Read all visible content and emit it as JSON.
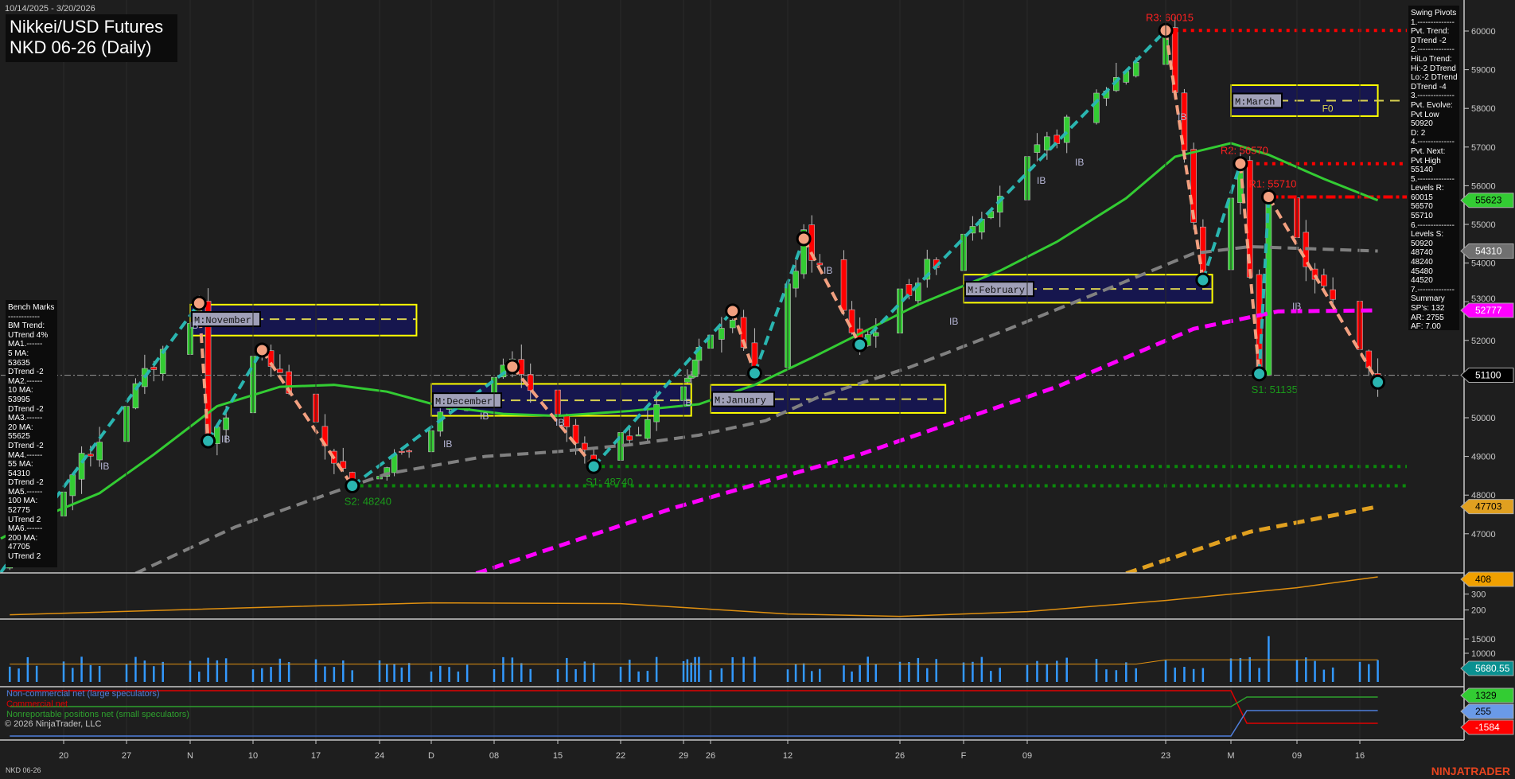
{
  "header": {
    "date_range": "10/14/2025 - 3/20/2026",
    "title_line1": "Nikkei/USD Futures",
    "title_line2": "NKD 06-26 (Daily)"
  },
  "swing_pivots_panel": [
    "Swing Pivots",
    "1.--------------",
    "Pvt. Trend:",
    "DTrend -2",
    "2.--------------",
    "HiLo Trend:",
    "Hi:-2 DTrend",
    "Lo:-2 DTrend",
    "DTrend -4",
    "3.--------------",
    "Pvt. Evolve:",
    "Pvt Low",
    "50920",
    "D: 2",
    "4.--------------",
    "Pvt. Next:",
    "Pvt High",
    "55140",
    "5.--------------",
    "Levels R:",
    "60015",
    "56570",
    "55710",
    "6.--------------",
    "Levels S:",
    "50920",
    "48740",
    "48240",
    "45480",
    "44520",
    "7.--------------",
    "Summary",
    "SP's: 132",
    "AR: 2755",
    "AF: 7.00"
  ],
  "bench_marks_panel": [
    "Bench Marks",
    "------------",
    "BM Trend:",
    "UTrend 4%",
    "MA1.------",
    "5 MA:",
    "53635",
    "DTrend -2",
    "MA2.------",
    "10 MA:",
    "53995",
    "DTrend -2",
    "MA3.------",
    "20 MA:",
    "55625",
    "DTrend -2",
    "MA4.------",
    "55 MA:",
    "54310",
    "DTrend -2",
    "MA5.------",
    "100 MA:",
    "52775",
    "UTrend 2",
    "MA6.------",
    "200 MA:",
    "47705",
    "UTrend 2"
  ],
  "footer": {
    "instrument": "NKD 06-26",
    "copyright": "© 2026 NinjaTrader, LLC",
    "brand": "NINJATRADER"
  },
  "cot_legend": [
    {
      "text": "Non-commercial net (large speculators)",
      "color": "#4f7fdc"
    },
    {
      "text": "Commercial net",
      "color": "#e00000"
    },
    {
      "text": "Nonreportable positions net (small speculators)",
      "color": "#2ea02e"
    }
  ],
  "colors": {
    "up": "#33cc33",
    "down": "#ff0000",
    "zig_up": "#2ab5b0",
    "zig_down": "#f2a080",
    "ma20": "#33cc33",
    "ma55": "#808080",
    "ma100": "#ff00ff",
    "ma200": "#e0a020",
    "box_fill": "#16164e",
    "box_border": "#ffff00"
  },
  "ib_label": "IB",
  "chart_data": {
    "type": "candlestick",
    "x_ticks": [
      {
        "label": "20",
        "date": "2025-10-20"
      },
      {
        "label": "27",
        "date": "2025-10-27"
      },
      {
        "label": "N",
        "date": "2025-11-03"
      },
      {
        "label": "10",
        "date": "2025-11-10"
      },
      {
        "label": "17",
        "date": "2025-11-17"
      },
      {
        "label": "24",
        "date": "2025-11-24"
      },
      {
        "label": "D",
        "date": "2025-12-01"
      },
      {
        "label": "08",
        "date": "2025-12-08"
      },
      {
        "label": "15",
        "date": "2025-12-15"
      },
      {
        "label": "22",
        "date": "2025-12-22"
      },
      {
        "label": "29",
        "date": "2025-12-29"
      },
      {
        "label": "26",
        "date": "2026-01-05"
      },
      {
        "label": "12",
        "date": "2026-01-12"
      },
      {
        "label": "26",
        "date": "2026-01-26"
      },
      {
        "label": "F",
        "date": "2026-02-02"
      },
      {
        "label": "09",
        "date": "2026-02-09"
      },
      {
        "label": "23",
        "date": "2026-02-23"
      },
      {
        "label": "M",
        "date": "2026-03-02"
      },
      {
        "label": "09",
        "date": "2026-03-09"
      },
      {
        "label": "16",
        "date": "2026-03-16"
      }
    ],
    "price_ticks": [
      60000,
      59000,
      58000,
      57000,
      56000,
      55000,
      54000,
      53000,
      52000,
      50000,
      49000,
      48000,
      47000
    ],
    "ylim": [
      46000,
      60800
    ],
    "swing_pivots": [
      {
        "date": "2025-10-13",
        "price": 46000
      },
      {
        "date": "2025-11-04",
        "price": 52960,
        "type": "high"
      },
      {
        "date": "2025-11-05",
        "price": 49400,
        "type": "low"
      },
      {
        "date": "2025-11-11",
        "price": 51750,
        "type": "high"
      },
      {
        "date": "2025-11-21",
        "price": 48240,
        "type": "low",
        "label": "S2: 48240"
      },
      {
        "date": "2025-12-10",
        "price": 51320,
        "type": "high"
      },
      {
        "date": "2025-12-19",
        "price": 48740,
        "type": "low",
        "label": "S1: 48740"
      },
      {
        "date": "2026-01-07",
        "price": 52760,
        "type": "high"
      },
      {
        "date": "2026-01-09",
        "price": 51150,
        "type": "low"
      },
      {
        "date": "2026-01-14",
        "price": 54630,
        "type": "high"
      },
      {
        "date": "2026-01-21",
        "price": 51890,
        "type": "low"
      },
      {
        "date": "2026-02-23",
        "price": 60015,
        "type": "high",
        "label": "R3: 60015"
      },
      {
        "date": "2026-02-27",
        "price": 53560,
        "type": "low"
      },
      {
        "date": "2026-03-03",
        "price": 56570,
        "type": "high",
        "label": "R2: 56570"
      },
      {
        "date": "2026-03-05",
        "price": 51135,
        "type": "low",
        "label": "S1: 51135"
      },
      {
        "date": "2026-03-06",
        "price": 55710,
        "type": "high",
        "label": "R1: 55710"
      },
      {
        "date": "2026-03-18",
        "price": 50920,
        "type": "low"
      }
    ],
    "levels": [
      {
        "price": 60015,
        "from": "2026-02-24",
        "color": "#ff0000",
        "style": "dotted"
      },
      {
        "price": 56570,
        "from": "2026-03-03",
        "color": "#ff0000",
        "style": "dotted"
      },
      {
        "price": 55710,
        "from": "2026-03-06",
        "color": "#ff0000",
        "style": "dashdot"
      },
      {
        "price": 48740,
        "from": "2025-12-19",
        "color": "#0a8a0a",
        "style": "dotted"
      },
      {
        "price": 48240,
        "from": "2025-11-21",
        "color": "#0a8a0a",
        "style": "dotted"
      },
      {
        "price": 51100,
        "from": "2025-10-13",
        "color": "#888888",
        "style": "dashdot"
      }
    ],
    "monthly_boxes": [
      {
        "label": "M:November",
        "from": "2025-11-03",
        "to": "2025-11-29",
        "high": 52925,
        "low": 52125,
        "mid": 52550
      },
      {
        "label": "M:December",
        "from": "2025-12-01",
        "to": "2025-12-31",
        "high": 50875,
        "low": 50050,
        "mid": 50450
      },
      {
        "label": "M:January",
        "from": "2026-01-05",
        "to": "2026-01-31",
        "high": 50850,
        "low": 50125,
        "mid": 50480
      },
      {
        "label": "M:February",
        "from": "2026-02-02",
        "to": "2026-02-28",
        "high": 53700,
        "low": 52975,
        "mid": 53330
      },
      {
        "label": "M:March",
        "from": "2026-03-02",
        "to": "2026-03-18",
        "high": 58600,
        "low": 57800,
        "mid": 58200,
        "tag": "F0"
      }
    ],
    "moving_averages": [
      {
        "name": "20 MA",
        "color": "#33cc33",
        "style": "solid",
        "points": [
          [
            "2025-10-13",
            46875
          ],
          [
            "2025-10-17",
            47375
          ],
          [
            "2025-10-24",
            48050
          ],
          [
            "2025-10-30",
            49050
          ],
          [
            "2025-11-06",
            50300
          ],
          [
            "2025-11-13",
            50800
          ],
          [
            "2025-11-19",
            50850
          ],
          [
            "2025-11-25",
            50675
          ],
          [
            "2025-12-02",
            50300
          ],
          [
            "2025-12-09",
            50100
          ],
          [
            "2025-12-15",
            50050
          ],
          [
            "2025-12-23",
            50175
          ],
          [
            "2026-01-02",
            50350
          ],
          [
            "2026-01-09",
            50850
          ],
          [
            "2026-01-15",
            51550
          ],
          [
            "2026-01-21",
            52175
          ],
          [
            "2026-01-28",
            52925
          ],
          [
            "2026-02-06",
            53800
          ],
          [
            "2026-02-12",
            54550
          ],
          [
            "2026-02-19",
            55675
          ],
          [
            "2026-02-24",
            56750
          ],
          [
            "2026-03-02",
            57100
          ],
          [
            "2026-03-06",
            56800
          ],
          [
            "2026-03-12",
            56175
          ],
          [
            "2026-03-18",
            55623
          ]
        ]
      },
      {
        "name": "55 MA",
        "color": "#808080",
        "style": "dashed",
        "points": [
          [
            "2025-10-28",
            45975
          ],
          [
            "2025-11-08",
            47175
          ],
          [
            "2025-11-18",
            48000
          ],
          [
            "2025-11-25",
            48550
          ],
          [
            "2025-12-07",
            49000
          ],
          [
            "2025-12-15",
            49125
          ],
          [
            "2025-12-23",
            49300
          ],
          [
            "2026-01-02",
            49550
          ],
          [
            "2026-01-10",
            49925
          ],
          [
            "2026-01-16",
            50550
          ],
          [
            "2026-01-27",
            51300
          ],
          [
            "2026-02-07",
            52300
          ],
          [
            "2026-02-18",
            53425
          ],
          [
            "2026-02-26",
            54250
          ],
          [
            "2026-03-04",
            54425
          ],
          [
            "2026-03-18",
            54310
          ]
        ]
      },
      {
        "name": "100 MA",
        "color": "#ff00ff",
        "style": "dashed",
        "points": [
          [
            "2025-12-06",
            45975
          ],
          [
            "2025-12-28",
            47675
          ],
          [
            "2026-01-21",
            49050
          ],
          [
            "2026-02-12",
            50800
          ],
          [
            "2026-02-26",
            52300
          ],
          [
            "2026-03-07",
            52750
          ],
          [
            "2026-03-18",
            52777
          ]
        ]
      },
      {
        "name": "200 MA",
        "color": "#e0a020",
        "style": "dashed",
        "points": [
          [
            "2026-02-19",
            45975
          ],
          [
            "2026-03-04",
            47050
          ],
          [
            "2026-03-18",
            47703
          ]
        ]
      }
    ],
    "price_markers": [
      {
        "value": "55623",
        "bg": "#33cc33",
        "fg": "#000",
        "price": 55623
      },
      {
        "value": "54310",
        "bg": "#707070",
        "fg": "#fff",
        "price": 54310
      },
      {
        "value": "52777",
        "bg": "#ff00ff",
        "fg": "#fff",
        "price": 52777
      },
      {
        "value": "51100",
        "bg": "#000000",
        "fg": "#fff",
        "price": 51100
      },
      {
        "value": "47703",
        "bg": "#e0a020",
        "fg": "#000",
        "price": 47703
      }
    ],
    "indicator_panel": {
      "ticks": [
        300,
        200
      ],
      "last": "408",
      "color": "#e09010",
      "points": [
        [
          "2025-10-14",
          170
        ],
        [
          "2025-11-10",
          215
        ],
        [
          "2025-12-01",
          245
        ],
        [
          "2025-12-22",
          240
        ],
        [
          "2026-01-12",
          175
        ],
        [
          "2026-01-26",
          160
        ],
        [
          "2026-02-09",
          190
        ],
        [
          "2026-02-23",
          260
        ],
        [
          "2026-03-09",
          340
        ],
        [
          "2026-03-18",
          408
        ]
      ]
    },
    "volume_panel": {
      "ticks": [
        15000,
        10000
      ],
      "last": "5680.55",
      "bar_color": "#3399ff",
      "avg_color": "#e09010",
      "spike": {
        "date": "2026-03-06",
        "value": 16000
      }
    },
    "cot_panel": {
      "values": [
        {
          "name": "Non-commercial net (large speculators)",
          "color": "#4f7fdc",
          "last": "255"
        },
        {
          "name": "Commercial net",
          "color": "#e00000",
          "last": "-1584"
        },
        {
          "name": "Nonreportable positions net (small speculators)",
          "color": "#2ea02e",
          "last": "1329"
        }
      ],
      "change_date": "2026-03-02"
    }
  }
}
